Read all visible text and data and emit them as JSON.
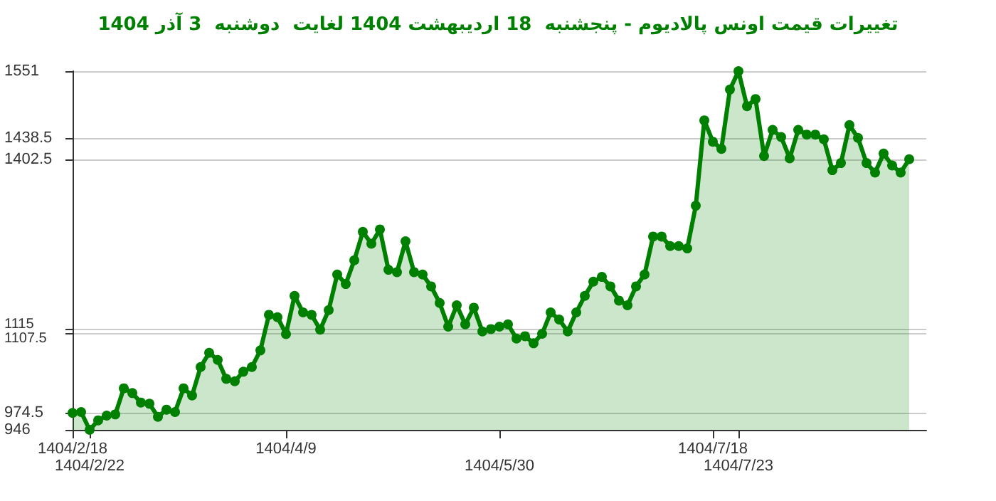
{
  "chart_data": {
    "type": "area",
    "title": "تغییرات قیمت اونس پالادیوم - پنجشنبه  18 اردیبهشت 1404 لغایت  دوشنبه  3 آذر 1404",
    "categories": [
      "1404/2/18",
      null,
      "1404/2/22",
      null,
      null,
      null,
      null,
      null,
      null,
      null,
      null,
      null,
      null,
      null,
      null,
      null,
      null,
      null,
      null,
      null,
      null,
      null,
      null,
      null,
      null,
      "1404/4/9",
      null,
      null,
      null,
      null,
      null,
      null,
      null,
      null,
      null,
      null,
      null,
      null,
      null,
      null,
      null,
      null,
      null,
      null,
      null,
      null,
      null,
      null,
      null,
      null,
      "1404/5/30",
      null,
      null,
      null,
      null,
      null,
      null,
      null,
      null,
      null,
      null,
      null,
      null,
      null,
      null,
      null,
      null,
      null,
      null,
      null,
      null,
      null,
      null,
      null,
      null,
      "1404/7/18",
      null,
      null,
      "1404/7/23",
      null,
      null,
      null,
      null,
      null,
      null,
      null,
      null,
      null,
      null,
      null,
      null,
      null,
      null,
      null,
      null,
      null,
      null,
      null,
      null,
      null,
      null
    ],
    "series": [
      {
        "color": "#008000",
        "values": [
          974.5,
          976,
          946,
          962,
          970,
          972,
          1016,
          1008,
          992,
          990,
          968,
          980,
          976,
          1016,
          1004,
          1052,
          1076,
          1064,
          1032,
          1028,
          1044,
          1052,
          1080,
          1140,
          1136,
          1107.5,
          1172,
          1144,
          1140,
          1115,
          1148,
          1208,
          1192,
          1232,
          1280,
          1260,
          1284,
          1216,
          1212,
          1264,
          1212,
          1208,
          1188,
          1160,
          1120,
          1156,
          1124,
          1152,
          1112,
          1116,
          1120,
          1124,
          1100,
          1104,
          1092,
          1108,
          1144,
          1132,
          1112,
          1144,
          1172,
          1196,
          1204,
          1188,
          1164,
          1156,
          1188,
          1208,
          1272,
          1272,
          1256,
          1256,
          1252,
          1324,
          1468,
          1432,
          1420,
          1520,
          1551,
          1492,
          1504,
          1408,
          1452,
          1440,
          1404,
          1452,
          1444,
          1444,
          1436,
          1384,
          1396,
          1460,
          1438.5,
          1396,
          1380,
          1412,
          1392,
          1380,
          1402.5,
          null,
          null
        ]
      }
    ],
    "ylim": [
      946,
      1551
    ],
    "yticks": [
      946,
      974.5,
      1107.5,
      1115,
      1402.5,
      1438.5,
      1551
    ],
    "grid": "y",
    "marker": "circle"
  }
}
